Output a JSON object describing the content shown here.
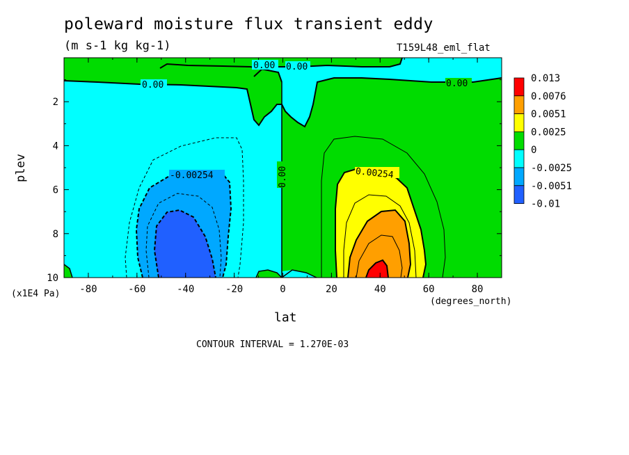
{
  "chart_data": {
    "type": "heatmap",
    "title": "poleward moisture flux transient eddy",
    "subtitle": "(m s-1 kg kg-1)",
    "run_label": "T159L48_eml_flat",
    "xlabel": "lat",
    "x_unit_label": "(degrees_north)",
    "ylabel": "plev",
    "y_unit_label": "(x1E4 Pa)",
    "xlim": [
      -90,
      90
    ],
    "ylim": [
      0,
      10
    ],
    "y_inverted": true,
    "x_ticks": [
      "-80",
      "-60",
      "-40",
      "-20",
      "0",
      "20",
      "40",
      "60",
      "80"
    ],
    "y_ticks": [
      "2",
      "4",
      "6",
      "8",
      "10"
    ],
    "colorbar": {
      "levels": [
        "0.013",
        "0.0076",
        "0.0051",
        "0.0025",
        "0",
        "-0.0025",
        "-0.0051",
        "-0.01"
      ],
      "colors": [
        "#ff0000",
        "#ff9f00",
        "#ffff00",
        "#00dc00",
        "#00ffff",
        "#00a8ff",
        "#2060ff"
      ]
    },
    "contour_labels": [
      "0.00",
      "0.00",
      "0.00",
      "0.00",
      "-0.00254",
      "0.00",
      "0.00254"
    ],
    "contour_interval": "CONTOUR INTERVAL = 1.270E-03"
  }
}
